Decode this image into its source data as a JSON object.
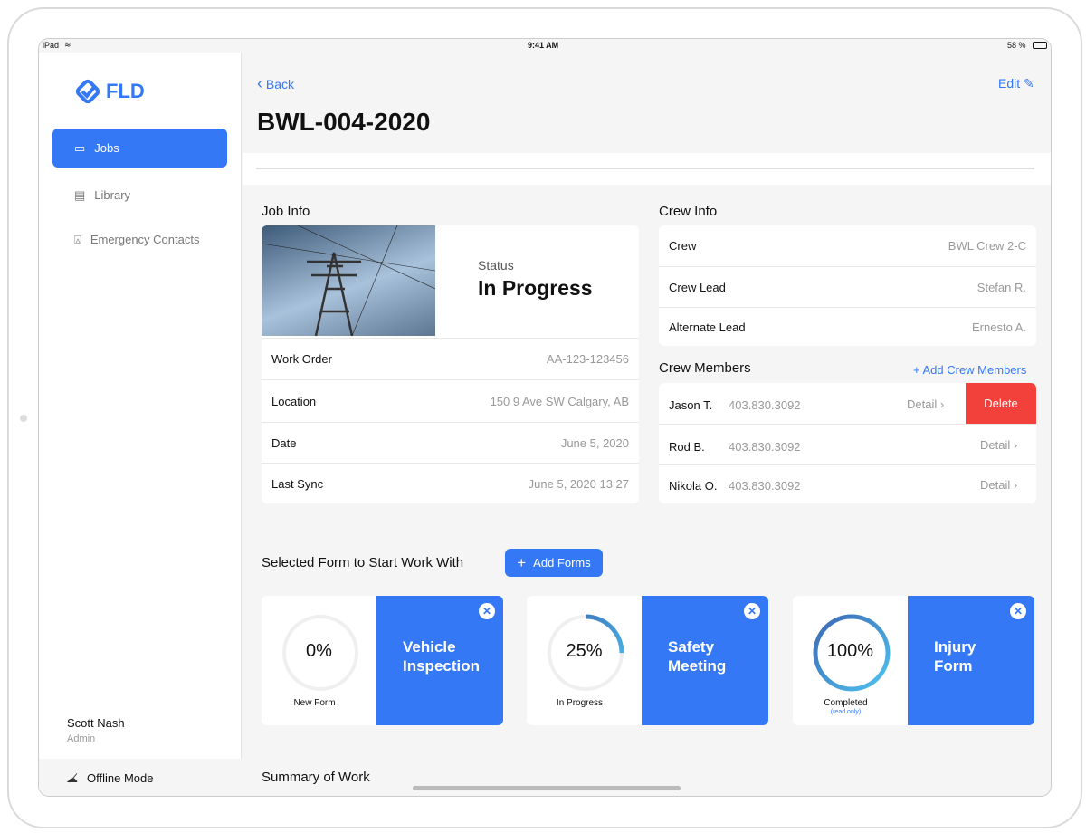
{
  "status_bar": {
    "device": "iPad",
    "time": "9:41 AM",
    "battery": "58 %"
  },
  "sidebar": {
    "logo": "FLD",
    "items": [
      {
        "label": "Jobs",
        "icon": "briefcase-icon",
        "active": true
      },
      {
        "label": "Library",
        "icon": "documents-icon"
      },
      {
        "label": "Emergency Contacts",
        "icon": "alarm-light-icon"
      }
    ],
    "user": {
      "name": "Scott Nash",
      "role": "Admin"
    },
    "offline_label": "Offline Mode"
  },
  "header": {
    "back": "Back",
    "edit": "Edit",
    "title": "BWL-004-2020"
  },
  "job_info": {
    "heading": "Job Info",
    "status_label": "Status",
    "status_value": "In Progress",
    "rows": [
      {
        "label": "Work Order",
        "value": "AA-123-123456"
      },
      {
        "label": "Location",
        "value": "150 9 Ave SW Calgary, AB"
      },
      {
        "label": "Date",
        "value": "June 5, 2020"
      },
      {
        "label": "Last Sync",
        "value": "June 5, 2020 13  27"
      }
    ]
  },
  "crew_info": {
    "heading": "Crew Info",
    "rows": [
      {
        "label": "Crew",
        "value": "BWL Crew 2-C"
      },
      {
        "label": "Crew Lead",
        "value": "Stefan R."
      },
      {
        "label": "Alternate Lead",
        "value": "Ernesto A."
      }
    ]
  },
  "crew_members": {
    "heading": "Crew Members",
    "add": "+ Add Crew Members",
    "detail": "Detail",
    "delete": "Delete",
    "members": [
      {
        "name": "Jason T.",
        "phone": "403.830.3092"
      },
      {
        "name": "Rod B.",
        "phone": "403.830.3092"
      },
      {
        "name": "Nikola O.",
        "phone": "403.830.3092"
      }
    ]
  },
  "forms": {
    "heading": "Selected Form to Start Work With",
    "add": "Add Forms",
    "items": [
      {
        "title_1": "Vehicle",
        "title_2": "Inspection",
        "percent": "0%",
        "progress": 0,
        "status": "New Form",
        "note": ""
      },
      {
        "title_1": "Safety",
        "title_2": "Meeting",
        "percent": "25%",
        "progress": 0.25,
        "status": "In Progress",
        "note": ""
      },
      {
        "title_1": "Injury",
        "title_2": "Form",
        "percent": "100%",
        "progress": 1,
        "status": "Completed",
        "note": "(read only)"
      }
    ]
  },
  "summary": {
    "heading": "Summary of Work"
  },
  "colors": {
    "accent": "#3478f6",
    "danger": "#f2403a"
  }
}
